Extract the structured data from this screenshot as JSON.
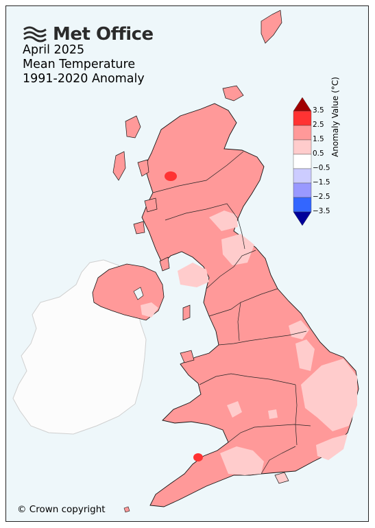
{
  "brand": {
    "name": "Met Office",
    "logo_icon": "met-office-wave-icon"
  },
  "title": {
    "line1": "April 2025",
    "line2": "Mean Temperature",
    "line3": "1991-2020 Anomaly"
  },
  "copyright": "© Crown copyright",
  "legend": {
    "title": "Anomaly Value (°C)",
    "ticks": [
      "3.5",
      "2.5",
      "1.5",
      "0.5",
      "−0.5",
      "−1.5",
      "−2.5",
      "−3.5"
    ],
    "bins": [
      {
        "range": "> 3.5",
        "color": "#a00000"
      },
      {
        "range": "2.5 to 3.5",
        "color": "#ff3333"
      },
      {
        "range": "1.5 to 2.5",
        "color": "#ff9999"
      },
      {
        "range": "0.5 to 1.5",
        "color": "#ffcccc"
      },
      {
        "range": "-0.5 to 0.5",
        "color": "#ffffff"
      },
      {
        "range": "-1.5 to -0.5",
        "color": "#ccccff"
      },
      {
        "range": "-2.5 to -1.5",
        "color": "#9999ff"
      },
      {
        "range": "-3.5 to -2.5",
        "color": "#3366ff"
      },
      {
        "range": "< -3.5",
        "color": "#000099"
      }
    ]
  },
  "colors": {
    "sea": "#eef7fa",
    "ireland_no_data": "#fcfcfc",
    "dominant_anomaly": "#ff9999",
    "lower_anomaly": "#ffcccc",
    "highest_anomaly": "#ff3333"
  }
}
